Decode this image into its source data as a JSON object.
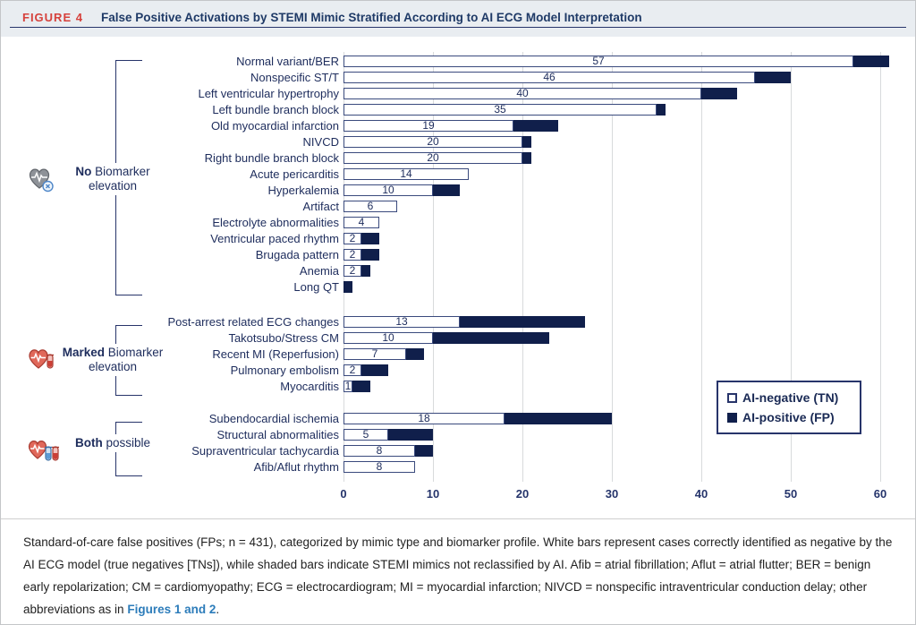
{
  "header": {
    "figure_label": "FIGURE 4",
    "title": "False Positive Activations by STEMI Mimic Stratified According to AI ECG Model Interpretation"
  },
  "legend": {
    "items": [
      {
        "label": "AI-negative (TN)",
        "swatch": "white"
      },
      {
        "label": "AI-positive (FP)",
        "swatch": "navy"
      }
    ]
  },
  "sections": [
    {
      "name": "No Biomarker elevation",
      "label_bold": "No",
      "label_rest": "Biomarker",
      "label_line2": "elevation",
      "icon": "heart-ecg-x-icon"
    },
    {
      "name": "Marked Biomarker elevation",
      "label_bold": "Marked",
      "label_rest": "Biomarker",
      "label_line2": "elevation",
      "icon": "heart-ecg-tube-icon"
    },
    {
      "name": "Both possible",
      "label_bold": "Both",
      "label_rest": "possible",
      "label_line2": "",
      "icon": "heart-ecg-two-tubes-icon"
    }
  ],
  "chart_data": {
    "type": "bar",
    "orientation": "horizontal",
    "stacked": true,
    "title": "False Positive Activations by STEMI Mimic Stratified According to AI ECG Model Interpretation",
    "xlabel": "",
    "ylabel": "",
    "xlim": [
      0,
      63
    ],
    "xticks": [
      0,
      10,
      20,
      30,
      40,
      50,
      60
    ],
    "grid": true,
    "legend_position": "right-middle",
    "series_names": [
      "AI-negative (TN)",
      "AI-positive (FP)"
    ],
    "total_n": 431,
    "groups": [
      {
        "group": "No Biomarker elevation",
        "rows": [
          {
            "category": "Normal variant/BER",
            "tn": 57,
            "fp": 4
          },
          {
            "category": "Nonspecific ST/T",
            "tn": 46,
            "fp": 4
          },
          {
            "category": "Left ventricular hypertrophy",
            "tn": 40,
            "fp": 4
          },
          {
            "category": "Left bundle branch block",
            "tn": 35,
            "fp": 1
          },
          {
            "category": "Old myocardial infarction",
            "tn": 19,
            "fp": 5
          },
          {
            "category": "NIVCD",
            "tn": 20,
            "fp": 1
          },
          {
            "category": "Right bundle branch block",
            "tn": 20,
            "fp": 1
          },
          {
            "category": "Acute pericarditis",
            "tn": 14,
            "fp": 0
          },
          {
            "category": "Hyperkalemia",
            "tn": 10,
            "fp": 3
          },
          {
            "category": "Artifact",
            "tn": 6,
            "fp": 0
          },
          {
            "category": "Electrolyte abnormalities",
            "tn": 4,
            "fp": 0
          },
          {
            "category": "Ventricular paced rhythm",
            "tn": 2,
            "fp": 2
          },
          {
            "category": "Brugada pattern",
            "tn": 2,
            "fp": 2
          },
          {
            "category": "Anemia",
            "tn": 2,
            "fp": 1
          },
          {
            "category": "Long QT",
            "tn": 0,
            "fp": 1
          }
        ]
      },
      {
        "group": "Marked Biomarker elevation",
        "rows": [
          {
            "category": "Post-arrest related ECG changes",
            "tn": 13,
            "fp": 14
          },
          {
            "category": "Takotsubo/Stress CM",
            "tn": 10,
            "fp": 13
          },
          {
            "category": "Recent MI (Reperfusion)",
            "tn": 7,
            "fp": 2
          },
          {
            "category": "Pulmonary embolism",
            "tn": 2,
            "fp": 3
          },
          {
            "category": "Myocarditis",
            "tn": 1,
            "fp": 2
          }
        ]
      },
      {
        "group": "Both possible",
        "rows": [
          {
            "category": "Subendocardial ischemia",
            "tn": 18,
            "fp": 12
          },
          {
            "category": "Structural abnormalities",
            "tn": 5,
            "fp": 5
          },
          {
            "category": "Supraventricular tachycardia",
            "tn": 8,
            "fp": 2
          },
          {
            "category": "Afib/Aflut rhythm",
            "tn": 8,
            "fp": 0
          }
        ]
      }
    ]
  },
  "caption": {
    "text_before_link": "Standard-of-care false positives (FPs; n = 431), categorized by mimic type and biomarker profile. White bars represent cases correctly identified as negative by the AI ECG model (true negatives [TNs]), while shaded bars indicate STEMI mimics not reclassified by AI. Afib = atrial fibrillation; Aflut = atrial flutter; BER = benign early repolarization; CM = cardiomyopathy; ECG = electrocardiogram; MI = myocardial infarction; NIVCD = nonspecific intraventricular conduction delay; other abbreviations as in ",
    "link": "Figures 1 and 2",
    "text_after_link": "."
  },
  "colors": {
    "fp_fill": "#101f4b",
    "bar_border": "#3a4a7d",
    "navy_text": "#1d2c5c",
    "title_navy": "#1f3a67",
    "figure_label_red": "#d6413c",
    "header_bg": "#e9edf1",
    "grid": "#d8dadc",
    "link_blue": "#2c7cba"
  }
}
